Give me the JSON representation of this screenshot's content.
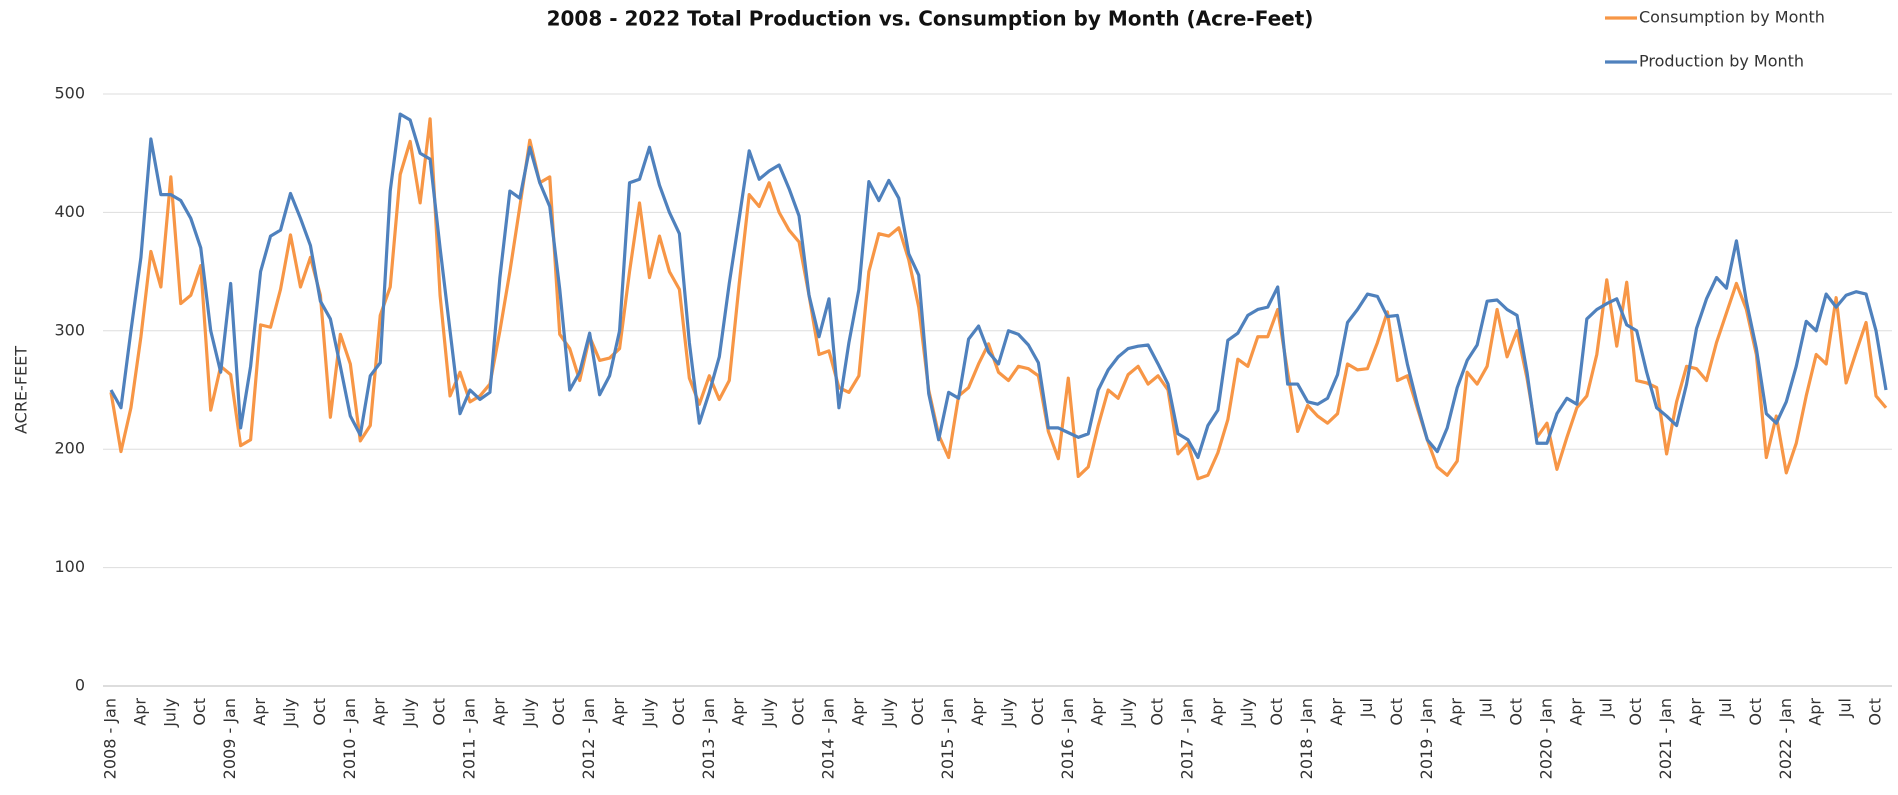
{
  "chart_data": {
    "type": "line",
    "title": "2008 - 2022 Total Production vs. Consumption by Month (Acre-Feet)",
    "y_label": "ACRE-FEET",
    "categories": [
      "2008 - Jan",
      null,
      null,
      "Apr",
      null,
      null,
      "July",
      null,
      null,
      "Oct",
      null,
      null,
      "2009 - Jan",
      null,
      null,
      "Apr",
      null,
      null,
      "July",
      null,
      null,
      "Oct",
      null,
      null,
      "2010 - Jan",
      null,
      null,
      "Apr",
      null,
      null,
      "July",
      null,
      null,
      "Oct",
      null,
      null,
      "2011 - Jan",
      null,
      null,
      "Apr",
      null,
      null,
      "July",
      null,
      null,
      "Oct",
      null,
      null,
      "2012 - Jan",
      null,
      null,
      "Apr",
      null,
      null,
      "July",
      null,
      null,
      "Oct",
      null,
      null,
      "2013 - Jan",
      null,
      null,
      "Apr",
      null,
      null,
      "July",
      null,
      null,
      "Oct",
      null,
      null,
      "2014 - Jan",
      null,
      null,
      "Apr",
      null,
      null,
      "July",
      null,
      null,
      "Oct",
      null,
      null,
      "2015 - Jan",
      null,
      null,
      "Apr",
      null,
      null,
      "July",
      null,
      null,
      "Oct",
      null,
      null,
      "2016 - Jan",
      null,
      null,
      "Apr",
      null,
      null,
      "July",
      null,
      null,
      "Oct",
      null,
      null,
      "2017 - Jan",
      null,
      null,
      "Apr",
      null,
      null,
      "July",
      null,
      null,
      "Oct",
      null,
      null,
      "2018 - Jan",
      null,
      null,
      "Apr",
      null,
      null,
      "Jul",
      null,
      null,
      "Oct",
      null,
      null,
      "2019 - Jan",
      null,
      null,
      "Apr",
      null,
      null,
      "Jul",
      null,
      null,
      "Oct",
      null,
      null,
      "2020 - Jan",
      null,
      null,
      "Apr",
      null,
      null,
      "Jul",
      null,
      null,
      "Oct",
      null,
      null,
      "2021 - Jan",
      null,
      null,
      "Apr",
      null,
      null,
      "Jul",
      null,
      null,
      "Oct",
      null,
      null,
      "2022 - Jan",
      null,
      null,
      "Apr",
      null,
      null,
      "Jul",
      null,
      null,
      "Oct",
      null
    ],
    "series": [
      {
        "name": "Consumption by Month",
        "color": "#f79646",
        "values": [
          248,
          198,
          235,
          295,
          367,
          337,
          430,
          323,
          330,
          355,
          233,
          270,
          263,
          203,
          208,
          305,
          303,
          335,
          381,
          337,
          362,
          330,
          227,
          297,
          272,
          207,
          220,
          313,
          337,
          432,
          460,
          408,
          479,
          330,
          245,
          265,
          240,
          245,
          255,
          300,
          350,
          405,
          461,
          425,
          430,
          297,
          285,
          258,
          295,
          275,
          277,
          285,
          350,
          408,
          345,
          380,
          350,
          335,
          260,
          238,
          262,
          242,
          258,
          340,
          415,
          405,
          425,
          400,
          385,
          375,
          330,
          280,
          283,
          252,
          248,
          262,
          350,
          382,
          380,
          387,
          360,
          320,
          250,
          212,
          193,
          245,
          252,
          272,
          289,
          265,
          258,
          270,
          268,
          262,
          215,
          192,
          260,
          177,
          185,
          220,
          250,
          243,
          263,
          270,
          255,
          262,
          250,
          196,
          205,
          175,
          178,
          197,
          225,
          276,
          270,
          295,
          295,
          318,
          265,
          215,
          237,
          228,
          222,
          230,
          272,
          267,
          268,
          290,
          316,
          258,
          262,
          235,
          208,
          185,
          178,
          190,
          265,
          255,
          270,
          318,
          278,
          300,
          260,
          210,
          222,
          183,
          210,
          235,
          245,
          280,
          343,
          287,
          341,
          258,
          256,
          252,
          196,
          240,
          270,
          268,
          258,
          290,
          315,
          340,
          318,
          280,
          193,
          228,
          180,
          205,
          245,
          280,
          272,
          328,
          256,
          282,
          307,
          245,
          235
        ]
      },
      {
        "name": "Production by Month",
        "color": "#4f81bd",
        "values": [
          250,
          235,
          300,
          362,
          462,
          415,
          415,
          410,
          395,
          370,
          300,
          265,
          340,
          218,
          270,
          350,
          380,
          385,
          416,
          395,
          372,
          325,
          310,
          270,
          228,
          212,
          262,
          273,
          418,
          483,
          478,
          450,
          445,
          370,
          300,
          230,
          250,
          242,
          248,
          345,
          418,
          412,
          455,
          425,
          405,
          335,
          250,
          265,
          298,
          246,
          262,
          300,
          425,
          428,
          455,
          423,
          400,
          382,
          290,
          222,
          248,
          278,
          340,
          395,
          452,
          428,
          435,
          440,
          420,
          397,
          330,
          295,
          327,
          235,
          290,
          335,
          426,
          410,
          427,
          412,
          365,
          347,
          247,
          208,
          248,
          243,
          293,
          304,
          282,
          272,
          300,
          297,
          288,
          273,
          218,
          218,
          214,
          210,
          213,
          250,
          267,
          278,
          285,
          287,
          288,
          272,
          255,
          213,
          208,
          193,
          220,
          233,
          292,
          298,
          313,
          318,
          320,
          337,
          255,
          255,
          240,
          238,
          243,
          263,
          307,
          318,
          331,
          329,
          312,
          313,
          272,
          238,
          208,
          198,
          218,
          252,
          275,
          288,
          325,
          326,
          318,
          313,
          265,
          205,
          205,
          230,
          243,
          238,
          310,
          318,
          323,
          327,
          305,
          300,
          265,
          235,
          228,
          220,
          255,
          302,
          327,
          345,
          336,
          376,
          325,
          285,
          230,
          222,
          240,
          270,
          308,
          300,
          331,
          320,
          330,
          333,
          331,
          300,
          250
        ]
      }
    ],
    "ylim": [
      0,
      500
    ],
    "yticks": [
      0,
      100,
      200,
      300,
      400,
      500
    ],
    "grid": true,
    "legend": "top-right"
  }
}
